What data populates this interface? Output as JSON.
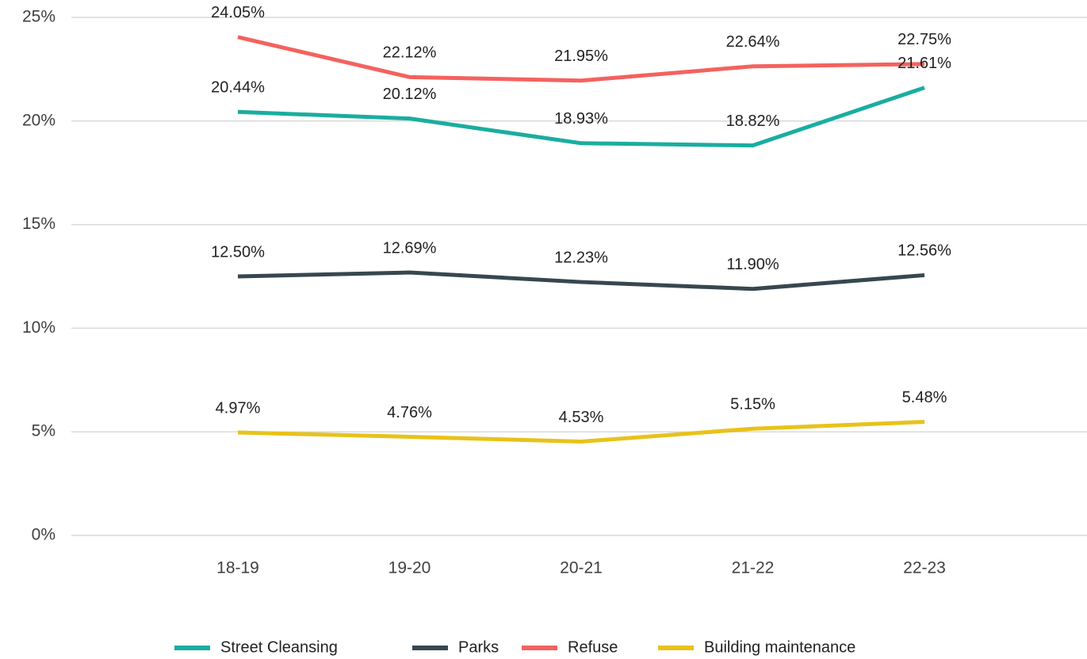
{
  "chart_data": {
    "type": "line",
    "categories": [
      "18-19",
      "19-20",
      "20-21",
      "21-22",
      "22-23"
    ],
    "series": [
      {
        "name": "Street Cleansing",
        "color": "#1aada0",
        "values": [
          20.44,
          20.12,
          18.93,
          18.82,
          21.61
        ],
        "value_labels": [
          "20.44%",
          "20.12%",
          "18.93%",
          "18.82%",
          "21.61%"
        ]
      },
      {
        "name": "Parks",
        "color": "#37474f",
        "values": [
          12.5,
          12.69,
          12.23,
          11.9,
          12.56
        ],
        "value_labels": [
          "12.50%",
          "12.69%",
          "12.23%",
          "11.90%",
          "12.56%"
        ]
      },
      {
        "name": "Refuse",
        "color": "#f4625e",
        "values": [
          24.05,
          22.12,
          21.95,
          22.64,
          22.75
        ],
        "value_labels": [
          "24.05%",
          "22.12%",
          "21.95%",
          "22.64%",
          "22.75%"
        ]
      },
      {
        "name": "Building maintenance",
        "color": "#e8c21a",
        "values": [
          4.97,
          4.76,
          4.53,
          5.15,
          5.48
        ],
        "value_labels": [
          "4.97%",
          "4.76%",
          "4.53%",
          "5.15%",
          "5.48%"
        ]
      }
    ],
    "ylim": [
      0,
      25
    ],
    "yticks": [
      {
        "value": 0,
        "label": "0%"
      },
      {
        "value": 5,
        "label": "5%"
      },
      {
        "value": 10,
        "label": "10%"
      },
      {
        "value": 15,
        "label": "15%"
      },
      {
        "value": 20,
        "label": "20%"
      },
      {
        "value": 25,
        "label": "25%"
      }
    ],
    "grid": true,
    "legend": "bottom"
  }
}
